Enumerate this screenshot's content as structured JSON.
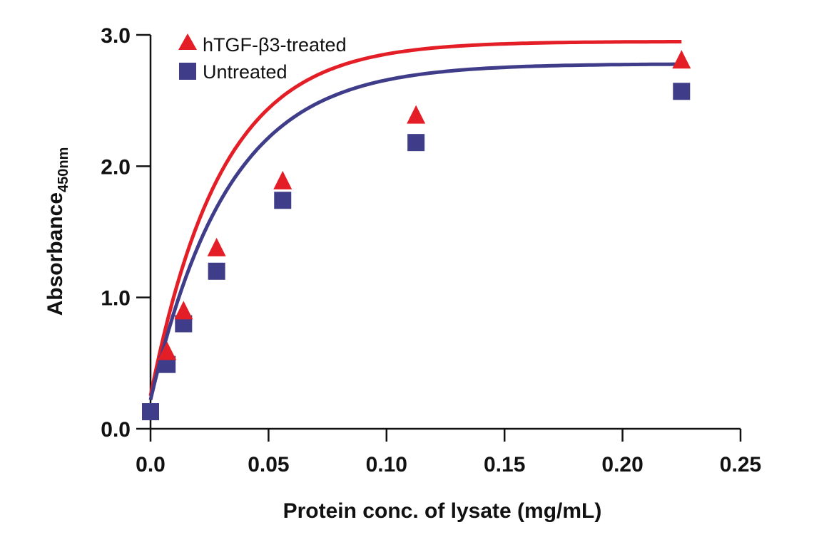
{
  "chart_data": {
    "type": "scatter",
    "title": "",
    "xlabel": "Protein conc. of lysate (mg/mL)",
    "ylabel": "Absorbance",
    "ylabel_subscript": "450nm",
    "xlim": [
      0,
      0.25
    ],
    "ylim": [
      0,
      3.0
    ],
    "xticks": [
      0,
      0.05,
      0.1,
      0.15,
      0.2,
      0.25
    ],
    "xtick_labels": [
      "0.0",
      "0.05",
      "0.10",
      "0.15",
      "0.20",
      "0.25"
    ],
    "yticks": [
      0,
      1,
      2,
      3
    ],
    "ytick_labels": [
      "0.0",
      "1.0",
      "2.0",
      "3.0"
    ],
    "grid": false,
    "legend_position": "top-left",
    "series": [
      {
        "name": "hTGF-β3-treated",
        "marker": "triangle",
        "color": "#e41e26",
        "x": [
          0.007,
          0.014,
          0.028,
          0.056,
          0.1125,
          0.225
        ],
        "y": [
          0.58,
          0.89,
          1.37,
          1.88,
          2.38,
          2.8
        ],
        "fit_curve": {
          "ymax": 2.95,
          "k": 0.03,
          "y0": 0.25,
          "x_end": 0.225
        }
      },
      {
        "name": "Untreated",
        "marker": "square",
        "color": "#3f3d8a",
        "x": [
          0,
          0.007,
          0.014,
          0.028,
          0.056,
          0.1125,
          0.225
        ],
        "y": [
          0.13,
          0.49,
          0.8,
          1.2,
          1.74,
          2.18,
          2.57
        ],
        "fit_curve": {
          "ymax": 2.78,
          "k": 0.033,
          "y0": 0.22,
          "x_end": 0.225
        }
      }
    ]
  }
}
